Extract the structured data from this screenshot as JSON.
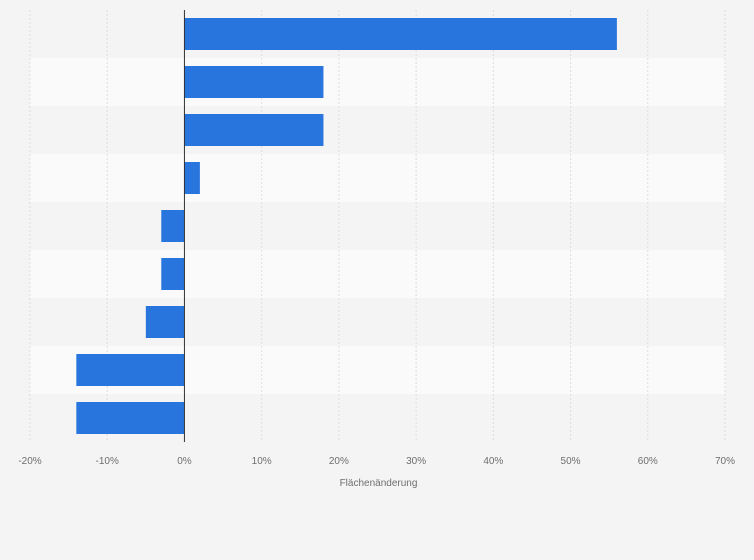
{
  "chart_data": {
    "type": "bar",
    "orientation": "horizontal",
    "categories": [
      "",
      "",
      "",
      "",
      "",
      "",
      "",
      "",
      ""
    ],
    "values": [
      56,
      18,
      18,
      2,
      -3,
      -3,
      -5,
      -14,
      -14
    ],
    "xlabel": "Flächenänderung",
    "xlim": [
      -20,
      70
    ],
    "xticks": [
      -20,
      -10,
      0,
      10,
      20,
      30,
      40,
      50,
      60,
      70
    ],
    "xtick_labels": [
      "-20%",
      "-10%",
      "0%",
      "10%",
      "20%",
      "30%",
      "40%",
      "50%",
      "60%",
      "70%"
    ],
    "grid": true,
    "legend": "none"
  },
  "colors": {
    "bar": "#2876dd",
    "background": "#f4f4f4",
    "row_alt": "#fafafa",
    "grid": "#dddddd",
    "zero_line": "#333333",
    "text": "#6e6e6e"
  }
}
